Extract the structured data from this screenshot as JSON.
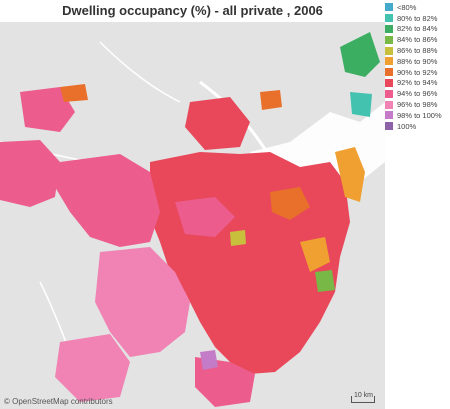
{
  "title": "Dwelling occupancy (%) - all private , 2006",
  "attribution": "© OpenStreetMap contributors",
  "scale_label": "10 km",
  "legend": [
    {
      "label": "<80%",
      "color": "#44aacc"
    },
    {
      "label": "80% to 82%",
      "color": "#44c2b0"
    },
    {
      "label": "82% to 84%",
      "color": "#3cae62"
    },
    {
      "label": "84% to 86%",
      "color": "#78b846"
    },
    {
      "label": "86% to 88%",
      "color": "#c8c03c"
    },
    {
      "label": "88% to 90%",
      "color": "#f0a030"
    },
    {
      "label": "90% to 92%",
      "color": "#e8702a"
    },
    {
      "label": "92% to 94%",
      "color": "#e8485a"
    },
    {
      "label": "94% to 96%",
      "color": "#ec5c8c"
    },
    {
      "label": "96% to 98%",
      "color": "#f082b4"
    },
    {
      "label": "98% to 100%",
      "color": "#c47cc8"
    },
    {
      "label": "100%",
      "color": "#8c62a8"
    }
  ]
}
